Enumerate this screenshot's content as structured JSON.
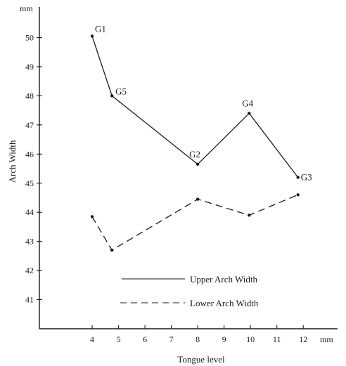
{
  "chart_data": {
    "type": "line",
    "xlabel": "Tongue level",
    "ylabel": "Arch Width",
    "x_unit": "mm",
    "y_unit": "mm",
    "xlim": [
      2.0,
      13.3
    ],
    "ylim": [
      40,
      51.05
    ],
    "x_ticks": [
      4,
      5,
      6,
      7,
      8,
      9,
      10,
      11,
      12
    ],
    "y_ticks": [
      41,
      42,
      43,
      44,
      45,
      46,
      47,
      48,
      49,
      50
    ],
    "legend_position": "bottom-right",
    "grid": false,
    "series": [
      {
        "name": "Upper Arch Width",
        "line_style": "solid",
        "points": [
          {
            "x": 4.0,
            "y": 50.05,
            "label": "G1"
          },
          {
            "x": 4.75,
            "y": 48.0,
            "label": "G5"
          },
          {
            "x": 8.0,
            "y": 45.65,
            "label": "G2"
          },
          {
            "x": 9.95,
            "y": 47.4,
            "label": "G4"
          },
          {
            "x": 11.8,
            "y": 45.2,
            "label": "G3"
          }
        ]
      },
      {
        "name": "Lower Arch Width",
        "line_style": "dashed",
        "points": [
          {
            "x": 4.0,
            "y": 43.85
          },
          {
            "x": 4.75,
            "y": 42.7
          },
          {
            "x": 8.0,
            "y": 44.45
          },
          {
            "x": 9.95,
            "y": 43.9
          },
          {
            "x": 11.8,
            "y": 44.6
          }
        ]
      }
    ]
  }
}
